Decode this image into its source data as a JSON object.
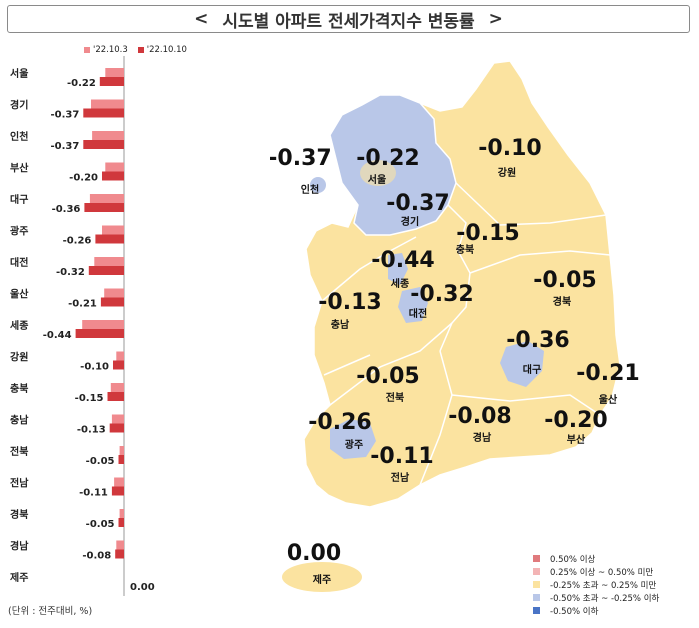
{
  "title": "시도별 아파트 전세가격지수 변동률",
  "chevron_left": "<",
  "chevron_right": ">",
  "legend_top": [
    {
      "label": "'22.10.3",
      "color": "#f08a8e"
    },
    {
      "label": "'22.10.10",
      "color": "#d0383c"
    }
  ],
  "unit_note": "(단위 : 전주대비, %)",
  "legend_bottom": [
    {
      "label": "0.50% 이상",
      "color": "#e07a7d"
    },
    {
      "label": "0.25% 이상 ~ 0.50% 미만",
      "color": "#f3b4b5"
    },
    {
      "label": "-0.25% 초과 ~ 0.25% 미만",
      "color": "#fbe3a0"
    },
    {
      "label": "-0.50% 초과 ~ -0.25% 이하",
      "color": "#b9c7e8"
    },
    {
      "label": "-0.50% 이하",
      "color": "#4a74c6"
    }
  ],
  "chart_data": {
    "type": "bar",
    "orientation": "horizontal",
    "categories": [
      "서울",
      "경기",
      "인천",
      "부산",
      "대구",
      "광주",
      "대전",
      "울산",
      "세종",
      "강원",
      "충북",
      "충남",
      "전북",
      "전남",
      "경북",
      "경남",
      "제주"
    ],
    "series": [
      {
        "name": "'22.10.3",
        "values": [
          -0.17,
          -0.3,
          -0.29,
          -0.17,
          -0.31,
          -0.2,
          -0.27,
          -0.18,
          -0.38,
          -0.07,
          -0.12,
          -0.11,
          -0.04,
          -0.09,
          -0.04,
          -0.07,
          0.0
        ]
      },
      {
        "name": "'22.10.10",
        "values": [
          -0.22,
          -0.37,
          -0.37,
          -0.2,
          -0.36,
          -0.26,
          -0.32,
          -0.21,
          -0.44,
          -0.1,
          -0.15,
          -0.13,
          -0.05,
          -0.11,
          -0.05,
          -0.08,
          0.0
        ]
      }
    ],
    "value_labels": [
      "-0.22",
      "-0.37",
      "-0.37",
      "-0.20",
      "-0.36",
      "-0.26",
      "-0.32",
      "-0.21",
      "-0.44",
      "-0.10",
      "-0.15",
      "-0.13",
      "-0.05",
      "-0.11",
      "-0.05",
      "-0.08",
      "0.00"
    ]
  },
  "map_labels": [
    {
      "name": "인천",
      "value": "-0.37"
    },
    {
      "name": "서울",
      "value": "-0.22"
    },
    {
      "name": "강원",
      "value": "-0.10"
    },
    {
      "name": "경기",
      "value": "-0.37"
    },
    {
      "name": "충북",
      "value": "-0.15"
    },
    {
      "name": "세종",
      "value": "-0.44"
    },
    {
      "name": "경북",
      "value": "-0.05"
    },
    {
      "name": "충남",
      "value": "-0.13"
    },
    {
      "name": "대전",
      "value": "-0.32"
    },
    {
      "name": "대구",
      "value": "-0.36"
    },
    {
      "name": "전북",
      "value": "-0.05"
    },
    {
      "name": "울산",
      "value": "-0.21"
    },
    {
      "name": "광주",
      "value": "-0.26"
    },
    {
      "name": "경남",
      "value": "-0.08"
    },
    {
      "name": "부산",
      "value": "-0.20"
    },
    {
      "name": "전남",
      "value": "-0.11"
    },
    {
      "name": "제주",
      "value": "0.00"
    }
  ]
}
